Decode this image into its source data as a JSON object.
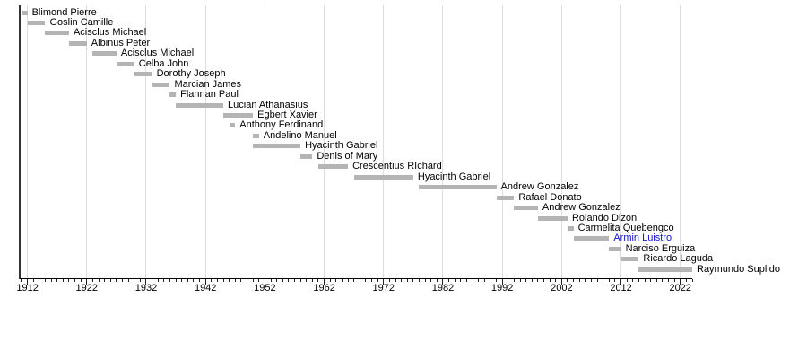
{
  "chart_data": {
    "type": "bar",
    "variant": "gantt-timeline",
    "title": "",
    "x_axis": {
      "min_year": 1910.7,
      "max_year": 2024,
      "major_ticks": [
        1912,
        1922,
        1932,
        1942,
        1952,
        1962,
        1972,
        1982,
        1992,
        2002,
        2012,
        2022
      ],
      "minor_tick_interval": 1,
      "grid": "on"
    },
    "rows": [
      {
        "name": "Blimond Pierre",
        "start": 1911,
        "end": 1912,
        "link": false
      },
      {
        "name": "Goslin Camille",
        "start": 1912,
        "end": 1915,
        "link": false
      },
      {
        "name": "Acisclus Michael",
        "start": 1915,
        "end": 1919,
        "link": false
      },
      {
        "name": "Albinus Peter",
        "start": 1919,
        "end": 1922,
        "link": false
      },
      {
        "name": "Acisclus Michael",
        "start": 1923,
        "end": 1927,
        "link": false
      },
      {
        "name": "Celba John",
        "start": 1927,
        "end": 1930,
        "link": false
      },
      {
        "name": "Dorothy Joseph",
        "start": 1930,
        "end": 1933,
        "link": false
      },
      {
        "name": "Marcian James",
        "start": 1933,
        "end": 1936,
        "link": false
      },
      {
        "name": "Flannan Paul",
        "start": 1936,
        "end": 1937,
        "link": false
      },
      {
        "name": "Lucian Athanasius",
        "start": 1937,
        "end": 1945,
        "link": false
      },
      {
        "name": "Egbert Xavier",
        "start": 1945,
        "end": 1950,
        "link": false
      },
      {
        "name": "Anthony Ferdinand",
        "start": 1946,
        "end": 1947,
        "link": false
      },
      {
        "name": "Andelino Manuel",
        "start": 1950,
        "end": 1951,
        "link": false
      },
      {
        "name": "Hyacinth Gabriel",
        "start": 1950,
        "end": 1958,
        "link": false
      },
      {
        "name": "Denis of Mary",
        "start": 1958,
        "end": 1960,
        "link": false
      },
      {
        "name": "Crescentius RIchard",
        "start": 1961,
        "end": 1966,
        "link": false
      },
      {
        "name": "Hyacinth Gabriel",
        "start": 1967,
        "end": 1977,
        "link": false
      },
      {
        "name": "Andrew Gonzalez",
        "start": 1978,
        "end": 1991,
        "link": false
      },
      {
        "name": "Rafael Donato",
        "start": 1991,
        "end": 1994,
        "link": false
      },
      {
        "name": "Andrew Gonzalez",
        "start": 1994,
        "end": 1998,
        "link": false
      },
      {
        "name": "Rolando Dizon",
        "start": 1998,
        "end": 2003,
        "link": false
      },
      {
        "name": "Carmelita Quebengco",
        "start": 2003,
        "end": 2004,
        "link": false
      },
      {
        "name": "Armin Luistro",
        "start": 2004,
        "end": 2010,
        "link": true
      },
      {
        "name": "Narciso Erguiza",
        "start": 2010,
        "end": 2012,
        "link": false
      },
      {
        "name": "Ricardo Laguda",
        "start": 2012,
        "end": 2015,
        "link": false
      },
      {
        "name": "Raymundo Suplido",
        "start": 2015,
        "end": 2024,
        "link": false
      }
    ],
    "colors": {
      "bar": "#b4b4b4",
      "grid": "#dedede",
      "axis": "#000000",
      "tick": "#222222",
      "text": "#000000",
      "link_text": "#1111cc",
      "left_border": "#333333",
      "background": "#ffffff"
    }
  }
}
